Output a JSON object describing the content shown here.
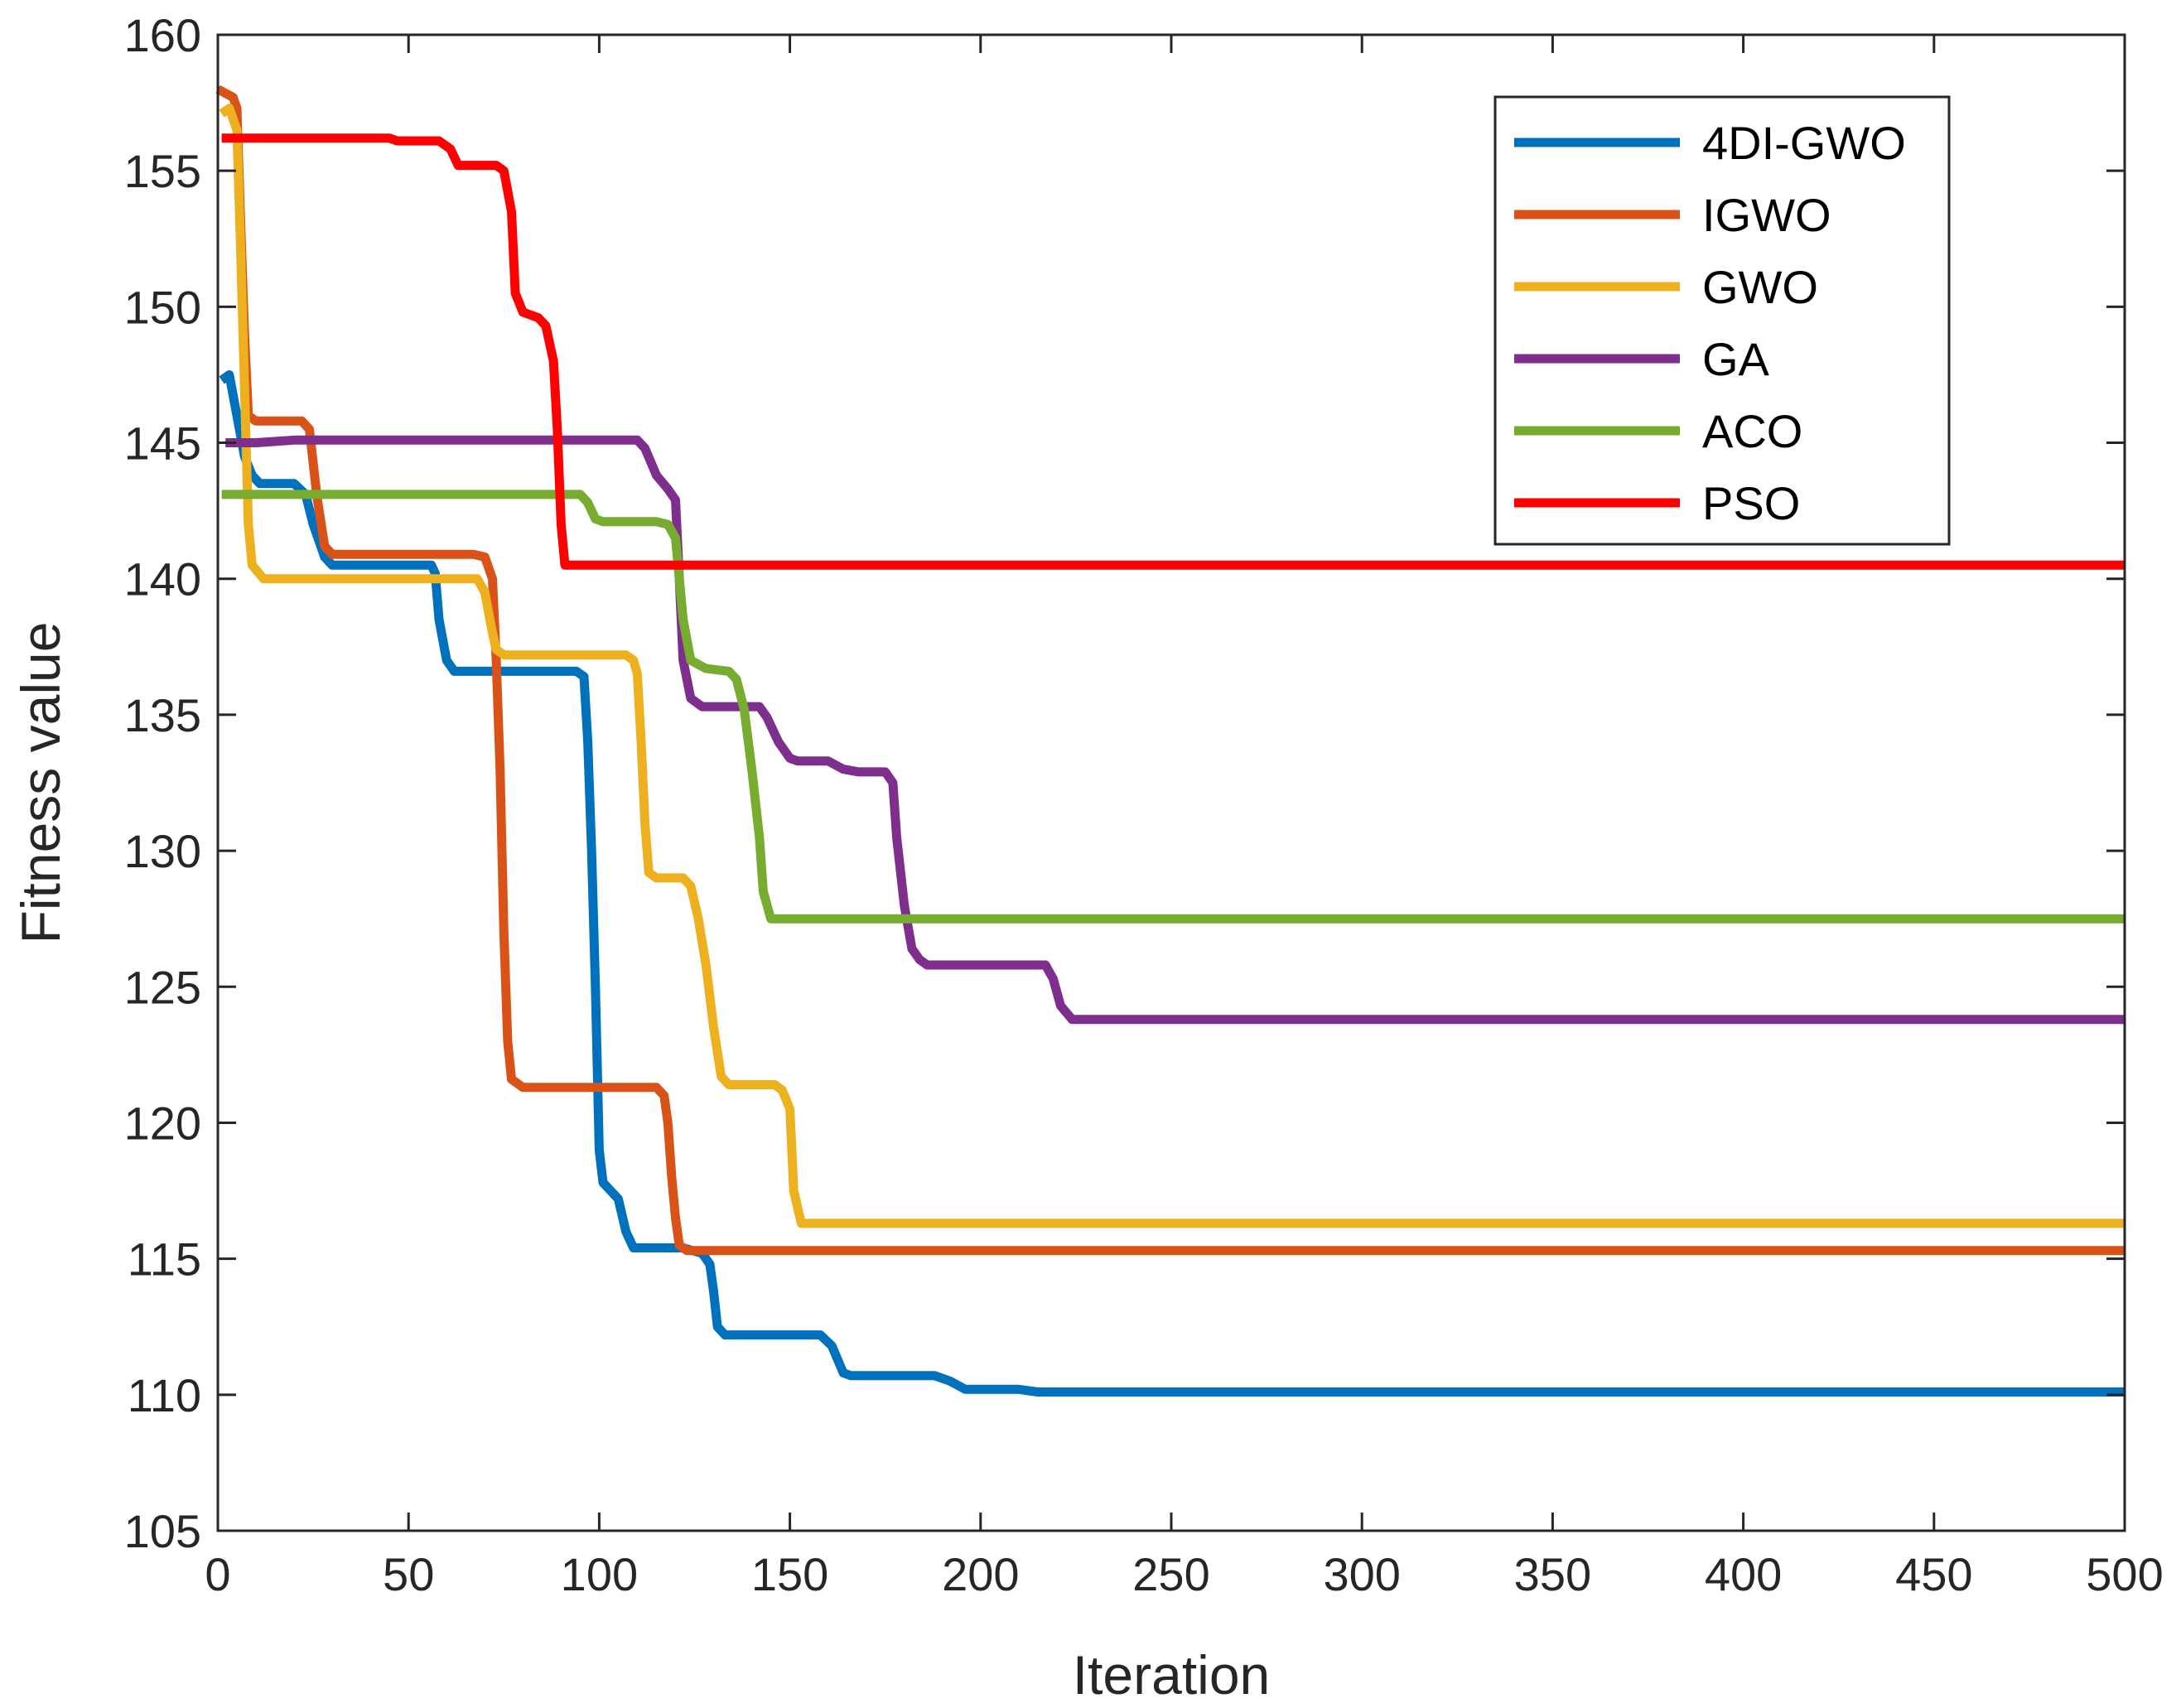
{
  "chart_data": {
    "type": "line",
    "title": "",
    "xlabel": "Iteration",
    "ylabel": "Fitness value",
    "xlim": [
      0,
      500
    ],
    "ylim": [
      105,
      160
    ],
    "xticks": [
      0,
      50,
      100,
      150,
      200,
      250,
      300,
      350,
      400,
      450,
      500
    ],
    "yticks": [
      105,
      110,
      115,
      120,
      125,
      130,
      135,
      140,
      145,
      150,
      155,
      160
    ],
    "xtick_labels": [
      "0",
      "50",
      "100",
      "150",
      "200",
      "250",
      "300",
      "350",
      "400",
      "450",
      "500"
    ],
    "ytick_labels": [
      "105",
      "110",
      "115",
      "120",
      "125",
      "130",
      "135",
      "140",
      "145",
      "150",
      "155",
      "160"
    ],
    "grid": false,
    "legend_position": "top-right",
    "series": [
      {
        "name": "4DI-GWO",
        "color": "#0072BD",
        "points": [
          [
            1,
            147.3
          ],
          [
            3,
            147.5
          ],
          [
            5,
            146
          ],
          [
            7,
            144.5
          ],
          [
            9,
            143.8
          ],
          [
            11,
            143.5
          ],
          [
            20,
            143.5
          ],
          [
            23,
            143.1
          ],
          [
            25,
            142
          ],
          [
            28,
            140.8
          ],
          [
            30,
            140.5
          ],
          [
            56,
            140.5
          ],
          [
            57,
            140.2
          ],
          [
            58,
            138.5
          ],
          [
            60,
            137
          ],
          [
            62,
            136.6
          ],
          [
            94,
            136.6
          ],
          [
            96,
            136.4
          ],
          [
            97,
            134
          ],
          [
            98,
            130
          ],
          [
            99,
            125
          ],
          [
            100,
            119
          ],
          [
            101,
            117.8
          ],
          [
            103,
            117.5
          ],
          [
            105,
            117.2
          ],
          [
            107,
            116
          ],
          [
            109,
            115.4
          ],
          [
            122,
            115.4
          ],
          [
            127,
            115.2
          ],
          [
            129,
            114.8
          ],
          [
            130,
            113.8
          ],
          [
            131,
            112.5
          ],
          [
            133,
            112.2
          ],
          [
            158,
            112.2
          ],
          [
            161,
            111.8
          ],
          [
            164,
            110.8
          ],
          [
            166,
            110.7
          ],
          [
            188,
            110.7
          ],
          [
            192,
            110.5
          ],
          [
            196,
            110.2
          ],
          [
            210,
            110.2
          ],
          [
            215,
            110.1
          ],
          [
            500,
            110.1
          ]
        ]
      },
      {
        "name": "IGWO",
        "color": "#D95319",
        "points": [
          [
            0,
            158
          ],
          [
            4,
            157.7
          ],
          [
            5,
            157.3
          ],
          [
            6,
            153
          ],
          [
            7,
            149
          ],
          [
            8,
            146
          ],
          [
            10,
            145.8
          ],
          [
            22,
            145.8
          ],
          [
            24,
            145.5
          ],
          [
            26,
            143
          ],
          [
            28,
            141.2
          ],
          [
            30,
            140.9
          ],
          [
            67,
            140.9
          ],
          [
            70,
            140.8
          ],
          [
            72,
            140
          ],
          [
            73,
            137
          ],
          [
            74,
            133
          ],
          [
            75,
            127
          ],
          [
            76,
            123
          ],
          [
            77,
            121.6
          ],
          [
            80,
            121.3
          ],
          [
            115,
            121.3
          ],
          [
            117,
            121
          ],
          [
            118,
            120
          ],
          [
            119,
            118
          ],
          [
            120,
            116.5
          ],
          [
            121,
            115.5
          ],
          [
            123,
            115.3
          ],
          [
            500,
            115.3
          ]
        ]
      },
      {
        "name": "GWO",
        "color": "#EDB120",
        "points": [
          [
            1,
            157.1
          ],
          [
            3,
            157.3
          ],
          [
            5,
            156.5
          ],
          [
            6,
            152
          ],
          [
            7,
            147
          ],
          [
            8,
            142
          ],
          [
            9,
            140.5
          ],
          [
            12,
            140
          ],
          [
            68,
            140
          ],
          [
            70,
            139.5
          ],
          [
            72,
            138
          ],
          [
            73,
            137.4
          ],
          [
            75,
            137.2
          ],
          [
            107,
            137.2
          ],
          [
            109,
            137
          ],
          [
            110,
            136.5
          ],
          [
            111,
            134
          ],
          [
            112,
            131
          ],
          [
            113,
            129.2
          ],
          [
            115,
            129
          ],
          [
            122,
            129
          ],
          [
            124,
            128.7
          ],
          [
            126,
            127.5
          ],
          [
            128,
            125.8
          ],
          [
            130,
            123.5
          ],
          [
            132,
            121.7
          ],
          [
            134,
            121.4
          ],
          [
            146,
            121.4
          ],
          [
            148,
            121.2
          ],
          [
            150,
            120.5
          ],
          [
            151,
            117.5
          ],
          [
            153,
            116.3
          ],
          [
            500,
            116.3
          ]
        ]
      },
      {
        "name": "GA",
        "color": "#7E2F8E",
        "points": [
          [
            2,
            145
          ],
          [
            10,
            145
          ],
          [
            20,
            145.1
          ],
          [
            110,
            145.1
          ],
          [
            112,
            144.8
          ],
          [
            115,
            143.8
          ],
          [
            118,
            143.3
          ],
          [
            120,
            142.9
          ],
          [
            121,
            140
          ],
          [
            122,
            137
          ],
          [
            124,
            135.6
          ],
          [
            127,
            135.3
          ],
          [
            142,
            135.3
          ],
          [
            144,
            134.9
          ],
          [
            147,
            134
          ],
          [
            150,
            133.4
          ],
          [
            152,
            133.3
          ],
          [
            160,
            133.3
          ],
          [
            164,
            133
          ],
          [
            168,
            132.9
          ],
          [
            175,
            132.9
          ],
          [
            177,
            132.5
          ],
          [
            178,
            130.5
          ],
          [
            180,
            128
          ],
          [
            182,
            126.4
          ],
          [
            184,
            126
          ],
          [
            186,
            125.8
          ],
          [
            217,
            125.8
          ],
          [
            219,
            125.3
          ],
          [
            221,
            124.3
          ],
          [
            224,
            123.8
          ],
          [
            500,
            123.8
          ]
        ]
      },
      {
        "name": "ACO",
        "color": "#77AC30",
        "points": [
          [
            1,
            143.1
          ],
          [
            95,
            143.1
          ],
          [
            97,
            142.8
          ],
          [
            99,
            142.2
          ],
          [
            101,
            142.1
          ],
          [
            115,
            142.1
          ],
          [
            118,
            142
          ],
          [
            120,
            141.5
          ],
          [
            121,
            140
          ],
          [
            122,
            138.5
          ],
          [
            124,
            137
          ],
          [
            128,
            136.7
          ],
          [
            134,
            136.6
          ],
          [
            136,
            136.3
          ],
          [
            138,
            135.2
          ],
          [
            140,
            133
          ],
          [
            142,
            130.5
          ],
          [
            143,
            128.5
          ],
          [
            145,
            127.5
          ],
          [
            175,
            127.5
          ],
          [
            180,
            127.5
          ],
          [
            500,
            127.5
          ]
        ]
      },
      {
        "name": "PSO",
        "color": "#FF0000",
        "points": [
          [
            1,
            156.2
          ],
          [
            45,
            156.2
          ],
          [
            47,
            156.1
          ],
          [
            58,
            156.1
          ],
          [
            61,
            155.8
          ],
          [
            63,
            155.2
          ],
          [
            73,
            155.2
          ],
          [
            75,
            155
          ],
          [
            77,
            153.5
          ],
          [
            78,
            150.5
          ],
          [
            80,
            149.8
          ],
          [
            84,
            149.6
          ],
          [
            86,
            149.3
          ],
          [
            88,
            148
          ],
          [
            89,
            145.5
          ],
          [
            90,
            142
          ],
          [
            91,
            140.5
          ],
          [
            500,
            140.5
          ]
        ]
      }
    ]
  }
}
